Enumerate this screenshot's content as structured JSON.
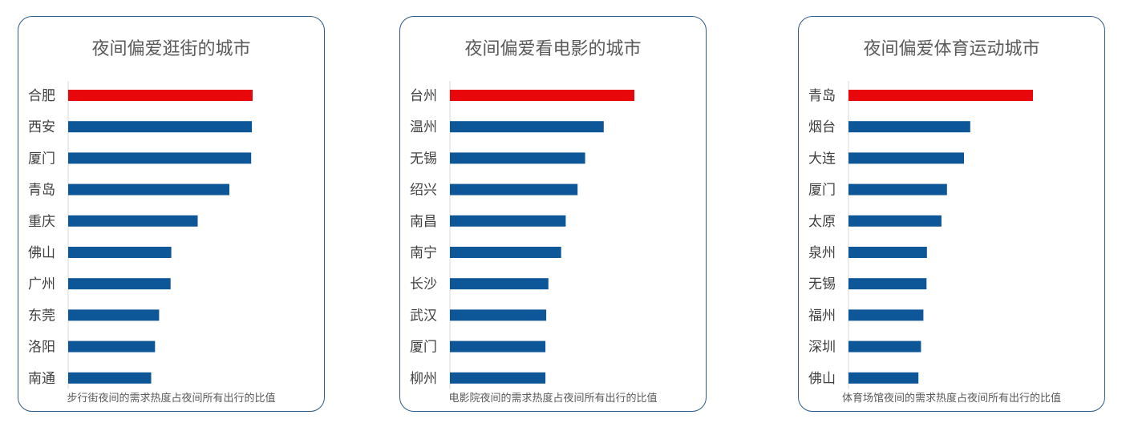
{
  "colors": {
    "highlight": "#e8080c",
    "bar": "#0d5799",
    "axis": "#d9d9d9"
  },
  "chart_data": [
    {
      "type": "bar",
      "title": "夜间偏爱逛街的城市",
      "caption": "步行街夜间的需求热度占夜间所有出行的比值",
      "categories": [
        "合肥",
        "西安",
        "厦门",
        "青岛",
        "重庆",
        "佛山",
        "广州",
        "东莞",
        "洛阳",
        "南通"
      ],
      "values": [
        1.0,
        0.996,
        0.992,
        0.874,
        0.702,
        0.559,
        0.555,
        0.493,
        0.471,
        0.45
      ]
    },
    {
      "type": "bar",
      "title": "夜间偏爱看电影的城市",
      "caption": "电影院夜间的需求热度占夜间所有出行的比值",
      "categories": [
        "台州",
        "温州",
        "无锡",
        "绍兴",
        "南昌",
        "南宁",
        "长沙",
        "武汉",
        "厦门",
        "柳州"
      ],
      "values": [
        1.0,
        0.834,
        0.733,
        0.692,
        0.628,
        0.603,
        0.534,
        0.522,
        0.518,
        0.518
      ]
    },
    {
      "type": "bar",
      "title": "夜间偏爱体育运动城市",
      "caption": "体育场馆夜间的需求热度占夜间所有出行的比值",
      "categories": [
        "青岛",
        "烟台",
        "大连",
        "厦门",
        "太原",
        "泉州",
        "无锡",
        "福州",
        "深圳",
        "佛山"
      ],
      "values": [
        1.0,
        0.66,
        0.626,
        0.534,
        0.504,
        0.425,
        0.423,
        0.406,
        0.393,
        0.379
      ]
    }
  ]
}
